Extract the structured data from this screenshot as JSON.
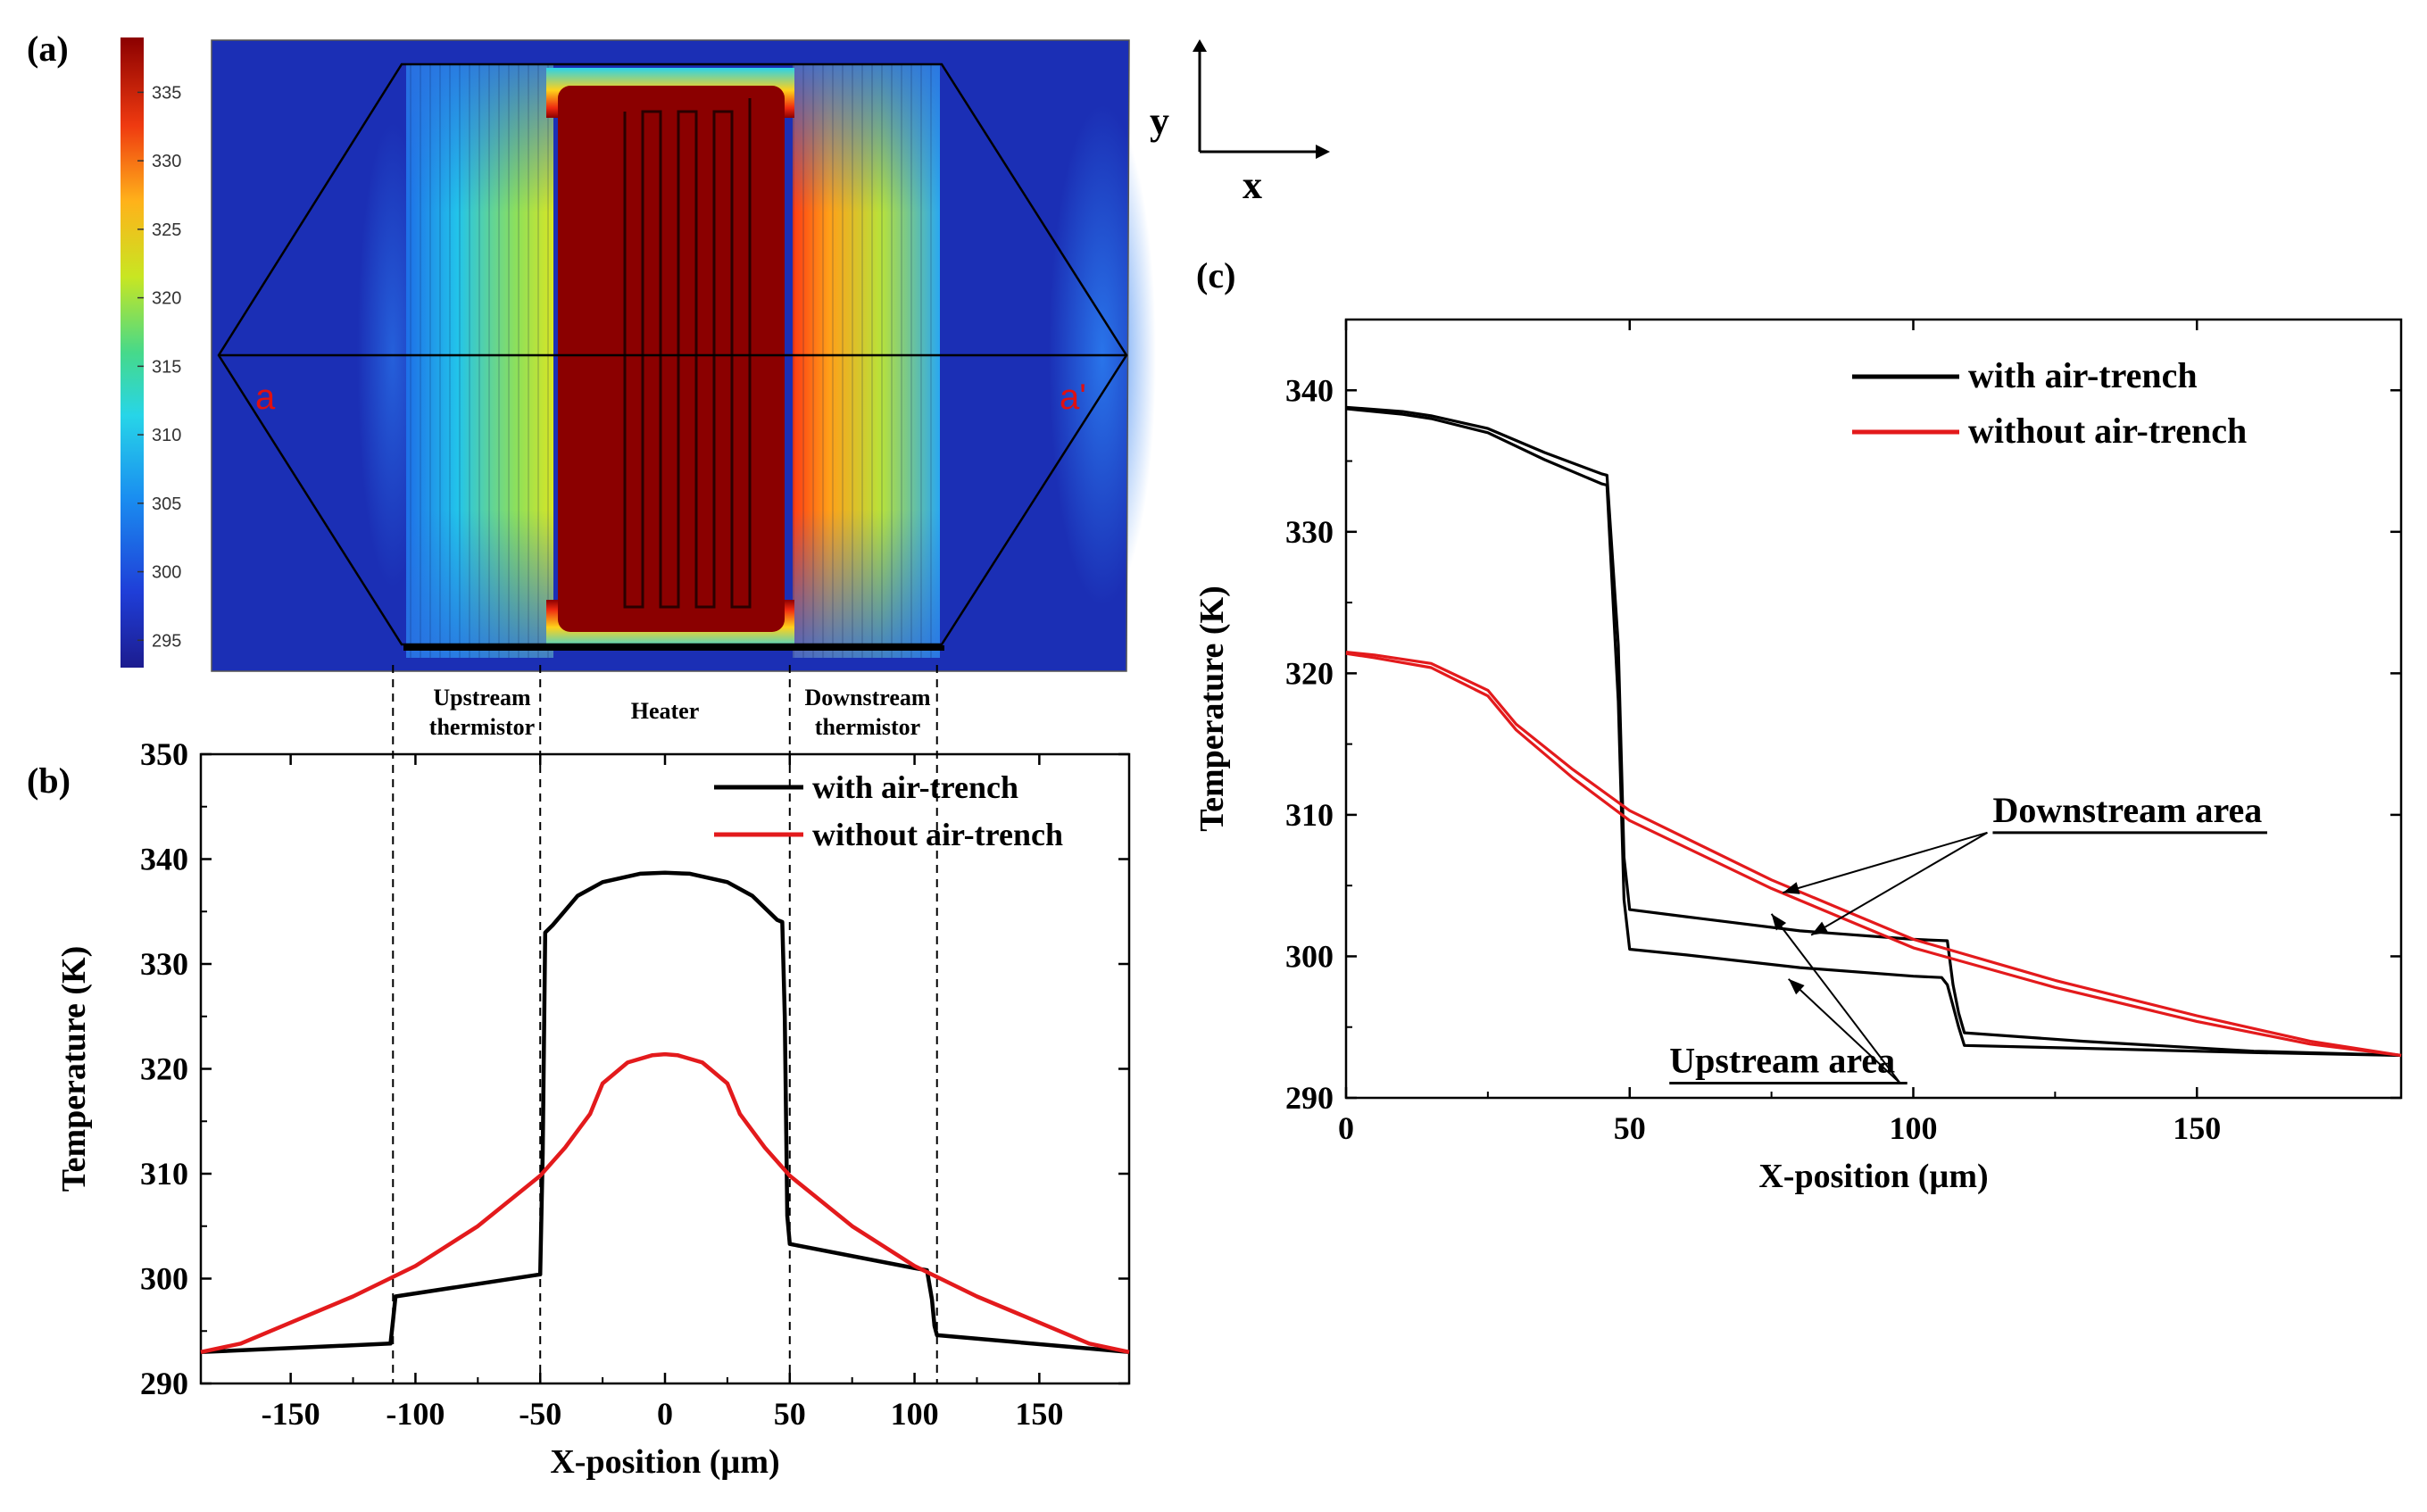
{
  "panel_labels": {
    "a": "(a)",
    "b": "(b)",
    "c": "(c)"
  },
  "axes_indicator": {
    "y": "y",
    "x": "x"
  },
  "contour": {
    "colorbar_ticks": [
      "335",
      "330",
      "325",
      "320",
      "315",
      "310",
      "305",
      "300",
      "295"
    ],
    "colorbar_range": [
      293,
      339
    ],
    "section_start": "a",
    "section_end": "a'",
    "region_labels": {
      "upstream": [
        "Upstream",
        "thermistor"
      ],
      "heater": "Heater",
      "downstream": [
        "Downstream",
        "thermistor"
      ]
    },
    "colors": {
      "hot": "#8b0000",
      "cold": "#1b2fb5"
    }
  },
  "series_colors": {
    "with": "#000000",
    "without": "#e31a1c"
  },
  "chart_data": [
    {
      "id": "b",
      "type": "line",
      "xlabel": "X-position (µm)",
      "ylabel": "Temperature (K)",
      "xlim": [
        -186,
        186
      ],
      "ylim": [
        290,
        350
      ],
      "xticks": [
        -150,
        -100,
        -50,
        0,
        50,
        100,
        150
      ],
      "yticks": [
        290,
        300,
        310,
        320,
        330,
        340,
        350
      ],
      "xtick_labels": [
        "-150",
        "-100",
        "-50",
        "0",
        "50",
        "100",
        "150"
      ],
      "ytick_labels": [
        "290",
        "300",
        "310",
        "320",
        "330",
        "340",
        "350"
      ],
      "legend": {
        "position": "top-right",
        "entries": [
          "with air-trench",
          "without air-trench"
        ]
      },
      "vlines": [
        -109,
        -50,
        50,
        109
      ],
      "series": [
        {
          "name": "with air-trench",
          "x": [
            -186,
            -110,
            -109,
            -108,
            -50,
            -49,
            -48,
            -45,
            -35,
            -25,
            -10,
            0,
            10,
            25,
            35,
            45,
            47,
            48,
            49,
            50,
            100,
            105,
            107,
            108,
            109,
            186
          ],
          "y": [
            293,
            293.8,
            296,
            298.3,
            300.4,
            312,
            333,
            333.7,
            336.5,
            337.8,
            338.6,
            338.7,
            338.6,
            337.8,
            336.5,
            334.2,
            334,
            325,
            306,
            303.3,
            301,
            300.8,
            298,
            295.5,
            294.6,
            293
          ]
        },
        {
          "name": "without air-trench",
          "x": [
            -186,
            -170,
            -150,
            -125,
            -100,
            -75,
            -50,
            -40,
            -30,
            -25,
            -15,
            -5,
            0,
            5,
            15,
            25,
            30,
            40,
            50,
            75,
            100,
            125,
            150,
            170,
            186
          ],
          "y": [
            293,
            293.8,
            295.8,
            298.3,
            301.2,
            305,
            309.8,
            312.5,
            315.7,
            318.6,
            320.6,
            321.3,
            321.4,
            321.3,
            320.6,
            318.6,
            315.7,
            312.5,
            309.8,
            305,
            301.2,
            298.3,
            295.8,
            293.8,
            293
          ]
        }
      ]
    },
    {
      "id": "c",
      "type": "line",
      "xlabel": "X-position (µm)",
      "ylabel": "Temperature (K)",
      "xlim": [
        0,
        186
      ],
      "ylim": [
        290,
        345
      ],
      "xticks": [
        0,
        50,
        100,
        150
      ],
      "yticks": [
        290,
        300,
        310,
        320,
        330,
        340
      ],
      "xtick_labels": [
        "0",
        "50",
        "100",
        "150"
      ],
      "ytick_labels": [
        "290",
        "300",
        "310",
        "320",
        "330",
        "340"
      ],
      "legend": {
        "position": "top-right",
        "entries": [
          "with air-trench",
          "without air-trench"
        ]
      },
      "annotations": [
        {
          "text": "Downstream area",
          "at": [
            114,
            309.5
          ],
          "targets": [
            [
              77,
              304.5
            ],
            [
              82,
              301.5
            ]
          ]
        },
        {
          "text": "Upstream area",
          "at": [
            57,
            291.8
          ],
          "targets": [
            [
              75,
              303
            ],
            [
              78,
              298.4
            ]
          ]
        }
      ],
      "series": [
        {
          "name": "with air-trench",
          "x": [
            0,
            10,
            15,
            25,
            35,
            45,
            46,
            48,
            49,
            50,
            60,
            80,
            100,
            106,
            107,
            108,
            109,
            130,
            160,
            186
          ],
          "y": [
            338.8,
            338.5,
            338.2,
            337.3,
            335.6,
            334.1,
            334,
            322,
            307,
            303.3,
            302.8,
            301.8,
            301.2,
            301.1,
            298,
            296,
            294.6,
            294,
            293.3,
            293
          ]
        },
        {
          "name": "with air-trench",
          "x": [
            0,
            10,
            15,
            25,
            35,
            45,
            46,
            48,
            49,
            50,
            60,
            80,
            100,
            105,
            106,
            107,
            108,
            109,
            130,
            160,
            186
          ],
          "y": [
            338.7,
            338.3,
            338,
            337,
            335.1,
            333.4,
            333.3,
            318,
            304,
            300.5,
            300.1,
            299.2,
            298.6,
            298.5,
            298,
            296.5,
            295,
            293.7,
            293.5,
            293.2,
            293
          ]
        },
        {
          "name": "without air-trench",
          "x": [
            0,
            5,
            15,
            25,
            30,
            40,
            50,
            75,
            100,
            125,
            150,
            170,
            186
          ],
          "y": [
            321.5,
            321.3,
            320.7,
            318.8,
            316.4,
            313.2,
            310.3,
            305.4,
            301.2,
            298.3,
            295.8,
            294,
            293
          ]
        },
        {
          "name": "without air-trench",
          "x": [
            0,
            5,
            15,
            25,
            30,
            40,
            50,
            75,
            100,
            125,
            150,
            170,
            186
          ],
          "y": [
            321.4,
            321.1,
            320.4,
            318.4,
            316,
            312.6,
            309.6,
            304.8,
            300.6,
            297.8,
            295.4,
            293.8,
            293
          ]
        }
      ]
    }
  ]
}
